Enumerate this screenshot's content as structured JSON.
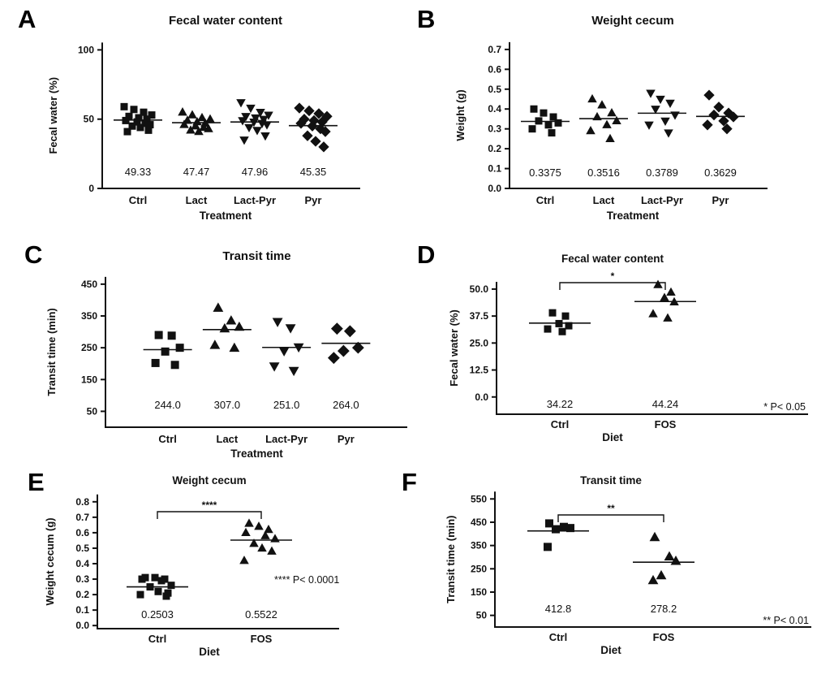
{
  "colors": {
    "ink": "#111111",
    "background": "#ffffff"
  },
  "figure": {
    "panel_letters": [
      "A",
      "B",
      "C",
      "D",
      "E",
      "F"
    ]
  },
  "chart_data": [
    {
      "type": "scatter",
      "panel_label": "A",
      "title": "Fecal water content",
      "xlabel": "Treatment",
      "ylabel": "Fecal water (%)",
      "ylim": [
        0,
        100
      ],
      "yticks": [
        0,
        50,
        100
      ],
      "ytick_labels": [
        "0",
        "50",
        "100"
      ],
      "categories": [
        "Ctrl",
        "Lact",
        "Lact-Pyr",
        "Pyr"
      ],
      "series": [
        {
          "name": "Ctrl",
          "marker": "square",
          "mean": 49.33,
          "mean_label": "49.33",
          "values": [
            59,
            57,
            55,
            53,
            52,
            51,
            50,
            49,
            48,
            47,
            46,
            45,
            44,
            42,
            41
          ]
        },
        {
          "name": "Lact",
          "marker": "triangle-up",
          "mean": 47.47,
          "mean_label": "47.47",
          "values": [
            55,
            53,
            51,
            50,
            49,
            48,
            47,
            46,
            45,
            44,
            43,
            42,
            41
          ]
        },
        {
          "name": "Lact-Pyr",
          "marker": "triangle-down",
          "mean": 47.96,
          "mean_label": "47.96",
          "values": [
            62,
            58,
            55,
            53,
            52,
            51,
            50,
            49,
            48,
            47,
            46,
            44,
            42,
            38,
            35
          ]
        },
        {
          "name": "Pyr",
          "marker": "diamond",
          "mean": 45.35,
          "mean_label": "45.35",
          "values": [
            58,
            56,
            54,
            52,
            50,
            49,
            48,
            47,
            45,
            43,
            41,
            38,
            34,
            30
          ]
        }
      ],
      "significance": null,
      "note": null
    },
    {
      "type": "scatter",
      "panel_label": "B",
      "title": "Weight cecum",
      "xlabel": "Treatment",
      "ylabel": "Weight (g)",
      "ylim": [
        0,
        0.7
      ],
      "yticks": [
        0,
        0.1,
        0.2,
        0.3,
        0.4,
        0.5,
        0.6,
        0.7
      ],
      "ytick_labels": [
        "0.0",
        "0.1",
        "0.2",
        "0.3",
        "0.4",
        "0.5",
        "0.6",
        "0.7"
      ],
      "categories": [
        "Ctrl",
        "Lact",
        "Lact-Pyr",
        "Pyr"
      ],
      "series": [
        {
          "name": "Ctrl",
          "marker": "square",
          "mean": 0.3375,
          "mean_label": "0.3375",
          "values": [
            0.4,
            0.38,
            0.36,
            0.34,
            0.33,
            0.32,
            0.3,
            0.28
          ]
        },
        {
          "name": "Lact",
          "marker": "triangle-up",
          "mean": 0.3516,
          "mean_label": "0.3516",
          "values": [
            0.45,
            0.42,
            0.38,
            0.36,
            0.34,
            0.32,
            0.29,
            0.25
          ]
        },
        {
          "name": "Lact-Pyr",
          "marker": "triangle-down",
          "mean": 0.3789,
          "mean_label": "0.3789",
          "values": [
            0.48,
            0.45,
            0.43,
            0.4,
            0.37,
            0.34,
            0.32,
            0.28
          ]
        },
        {
          "name": "Pyr",
          "marker": "diamond",
          "mean": 0.3629,
          "mean_label": "0.3629",
          "values": [
            0.47,
            0.41,
            0.38,
            0.37,
            0.36,
            0.34,
            0.32,
            0.3
          ]
        }
      ],
      "significance": null,
      "note": null
    },
    {
      "type": "scatter",
      "panel_label": "C",
      "title": "Transit time",
      "xlabel": "Treatment",
      "ylabel": "Transit time (min)",
      "ylim": [
        50,
        450
      ],
      "yticks": [
        50,
        150,
        250,
        350,
        450
      ],
      "ytick_labels": [
        "50",
        "150",
        "250",
        "350",
        "450"
      ],
      "categories": [
        "Ctrl",
        "Lact",
        "Lact-Pyr",
        "Pyr"
      ],
      "series": [
        {
          "name": "Ctrl",
          "marker": "square",
          "mean": 244.0,
          "mean_label": "244.0",
          "values": [
            290,
            288,
            250,
            238,
            202,
            196
          ]
        },
        {
          "name": "Lact",
          "marker": "triangle-up",
          "mean": 307.0,
          "mean_label": "307.0",
          "values": [
            375,
            335,
            315,
            310,
            258,
            249
          ]
        },
        {
          "name": "Lact-Pyr",
          "marker": "triangle-down",
          "mean": 251.0,
          "mean_label": "251.0",
          "values": [
            332,
            312,
            252,
            240,
            192,
            178
          ]
        },
        {
          "name": "Pyr",
          "marker": "diamond",
          "mean": 264.0,
          "mean_label": "264.0",
          "values": [
            310,
            302,
            250,
            240,
            218
          ]
        }
      ],
      "significance": null,
      "note": null
    },
    {
      "type": "scatter",
      "panel_label": "D",
      "title": "Fecal water content",
      "xlabel": "Diet",
      "ylabel": "Fecal water (%)",
      "ylim": [
        0,
        50
      ],
      "yticks": [
        0,
        12.5,
        25,
        37.5,
        50
      ],
      "ytick_labels": [
        "0.0",
        "12.5",
        "25.0",
        "37.5",
        "50.0"
      ],
      "categories": [
        "Ctrl",
        "FOS"
      ],
      "series": [
        {
          "name": "Ctrl",
          "marker": "square",
          "mean": 34.22,
          "mean_label": "34.22",
          "values": [
            39,
            37.5,
            34,
            33,
            31.5,
            30.3
          ]
        },
        {
          "name": "FOS",
          "marker": "triangle-up",
          "mean": 44.24,
          "mean_label": "44.24",
          "values": [
            52,
            48.5,
            46,
            44,
            38.5,
            36.5
          ]
        }
      ],
      "significance": {
        "between": [
          "Ctrl",
          "FOS"
        ],
        "stars": "*"
      },
      "note": "* P< 0.05"
    },
    {
      "type": "scatter",
      "panel_label": "E",
      "title": "Weight cecum",
      "xlabel": "Diet",
      "ylabel": "Weight cecum (g)",
      "ylim": [
        0,
        0.8
      ],
      "yticks": [
        0,
        0.1,
        0.2,
        0.3,
        0.4,
        0.5,
        0.6,
        0.7,
        0.8
      ],
      "ytick_labels": [
        "0.0",
        "0.1",
        "0.2",
        "0.3",
        "0.4",
        "0.5",
        "0.6",
        "0.7",
        "0.8"
      ],
      "categories": [
        "Ctrl",
        "FOS"
      ],
      "series": [
        {
          "name": "Ctrl",
          "marker": "square",
          "mean": 0.2503,
          "mean_label": "0.2503",
          "values": [
            0.31,
            0.31,
            0.3,
            0.3,
            0.29,
            0.26,
            0.25,
            0.22,
            0.21,
            0.2,
            0.19
          ]
        },
        {
          "name": "FOS",
          "marker": "triangle-up",
          "mean": 0.5522,
          "mean_label": "0.5522",
          "values": [
            0.66,
            0.64,
            0.62,
            0.6,
            0.58,
            0.56,
            0.53,
            0.5,
            0.48,
            0.42
          ]
        }
      ],
      "significance": {
        "between": [
          "Ctrl",
          "FOS"
        ],
        "stars": "****"
      },
      "note": "**** P< 0.0001"
    },
    {
      "type": "scatter",
      "panel_label": "F",
      "title": "Transit time",
      "xlabel": "Diet",
      "ylabel": "Transit time (min)",
      "ylim": [
        50,
        550
      ],
      "yticks": [
        50,
        150,
        250,
        350,
        450,
        550
      ],
      "ytick_labels": [
        "50",
        "150",
        "250",
        "350",
        "450",
        "550"
      ],
      "categories": [
        "Ctrl",
        "FOS"
      ],
      "series": [
        {
          "name": "Ctrl",
          "marker": "square",
          "mean": 412.8,
          "mean_label": "412.8",
          "values": [
            445,
            430,
            425,
            420,
            344
          ]
        },
        {
          "name": "FOS",
          "marker": "triangle-up",
          "mean": 278.2,
          "mean_label": "278.2",
          "values": [
            385,
            302,
            283,
            221,
            200
          ]
        }
      ],
      "significance": {
        "between": [
          "Ctrl",
          "FOS"
        ],
        "stars": "**"
      },
      "note": "** P< 0.01"
    }
  ]
}
